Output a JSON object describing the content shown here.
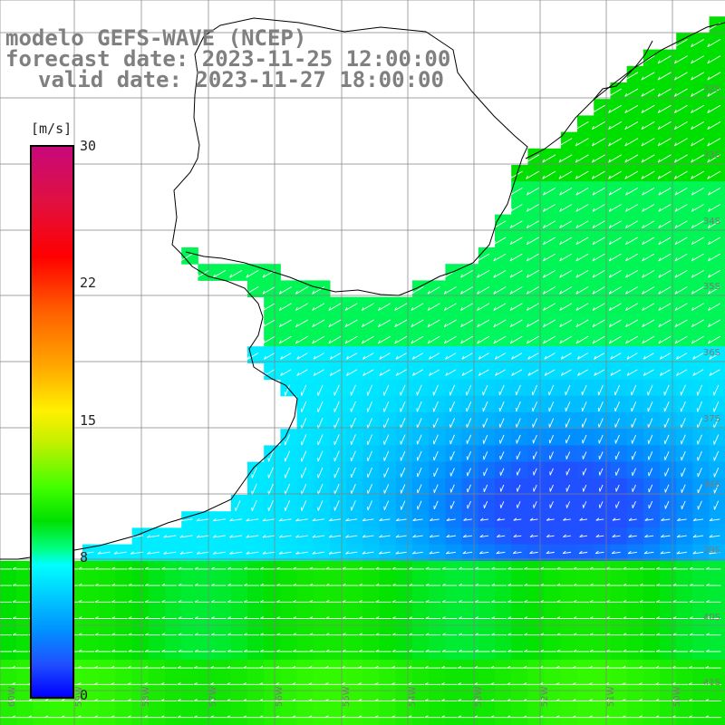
{
  "title": {
    "model": "modelo GEFS-WAVE (NCEP)",
    "forecast": "forecast date: 2023-11-25 12:00:00",
    "valid": "valid date: 2023-11-27 18:00:00"
  },
  "colorbar": {
    "unit": "[m/s]",
    "min": 0,
    "max": 30,
    "ticks": [
      "30",
      "22",
      "15",
      "8",
      "0"
    ],
    "colors": {
      "top": "#c8087a",
      "red": "#ff0000",
      "orange": "#ffa800",
      "yellow": "#fff000",
      "green": "#00e000",
      "cyan": "#00ffff",
      "blue": "#0000ff"
    }
  },
  "axes": {
    "lat_labels": [
      "32S",
      "33S",
      "34S",
      "35S",
      "36S",
      "37S",
      "38S",
      "39S",
      "40S",
      "41S"
    ],
    "lon_labels": [
      "60W",
      "59W",
      "58W",
      "57W",
      "56W",
      "55W",
      "54W",
      "53W",
      "52W",
      "51W",
      "50W"
    ],
    "grid": true
  },
  "wind_field": {
    "description_units": "m/s",
    "nearshore_speed": 10,
    "offshore_northeast_speed": 9,
    "central_calm_speed": 4,
    "southern_band_speed": 11,
    "dominant_direction": "from east / northeast, veering to north in center"
  },
  "map_colors": {
    "land": "#ffffff",
    "coast": "#000000",
    "grid": "#808080",
    "arrow": "#ffffff"
  }
}
